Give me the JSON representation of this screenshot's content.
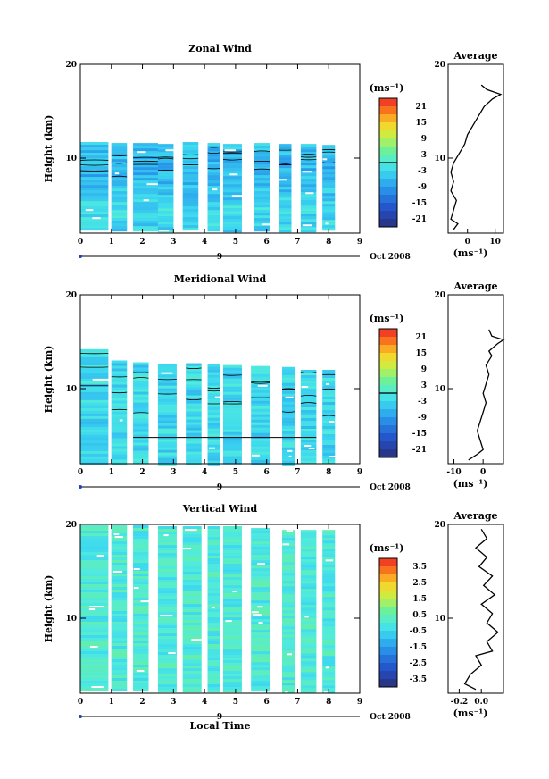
{
  "chart_data": [
    {
      "type": "heatmap",
      "title": "Zonal Wind",
      "ylabel": "Height (km)",
      "xlabel": "",
      "date_label": "Oct 2008",
      "mid_marker": "9",
      "xlim": [
        0,
        9
      ],
      "ylim": [
        2,
        20
      ],
      "xticks": [
        "0",
        "1",
        "2",
        "3",
        "4",
        "5",
        "6",
        "7",
        "8",
        "9"
      ],
      "yticks": [
        {
          "v": 10,
          "label": "10"
        },
        {
          "v": 20,
          "label": "20"
        }
      ],
      "colorbar": {
        "unit": "(ms⁻¹)",
        "range": [
          -24,
          24
        ],
        "ticks": [
          "21",
          "15",
          "9",
          "3",
          "-3",
          "-9",
          "-15",
          "-21"
        ],
        "mark": 0
      },
      "columns": [
        [
          0.0,
          0.9
        ],
        [
          1.0,
          1.5
        ],
        [
          1.7,
          2.5
        ],
        [
          2.5,
          3.0
        ],
        [
          3.3,
          3.8
        ],
        [
          4.1,
          4.5
        ],
        [
          4.6,
          5.2
        ],
        [
          5.6,
          6.1
        ],
        [
          6.4,
          6.8
        ],
        [
          7.1,
          7.6
        ],
        [
          7.8,
          8.2
        ]
      ],
      "data_top": [
        11.7,
        11.6,
        11.6,
        11.5,
        11.7,
        11.6,
        11.5,
        11.6,
        11.5,
        11.5,
        11.4
      ],
      "data_bottom": 2.3,
      "average": {
        "title": "Average",
        "xlim": [
          -7,
          13
        ],
        "xticks": [
          "0",
          "10"
        ],
        "unit": "(ms⁻¹)",
        "profile": [
          [
            -5,
            2.4
          ],
          [
            -3.5,
            3
          ],
          [
            -6,
            3.5
          ],
          [
            -5,
            4.5
          ],
          [
            -4,
            5.5
          ],
          [
            -6,
            6.5
          ],
          [
            -5,
            7.5
          ],
          [
            -6,
            8.5
          ],
          [
            -5,
            9.5
          ],
          [
            -3,
            10.5
          ],
          [
            -1,
            11.5
          ],
          [
            0,
            12.5
          ],
          [
            2,
            13.5
          ],
          [
            4,
            14.5
          ],
          [
            6,
            15.5
          ],
          [
            9,
            16.3
          ],
          [
            12,
            16.8
          ],
          [
            7,
            17.3
          ],
          [
            5,
            17.8
          ]
        ]
      }
    },
    {
      "type": "heatmap",
      "title": "Meridional Wind",
      "ylabel": "Height (km)",
      "xlabel": "",
      "date_label": "Oct 2008",
      "mid_marker": "9",
      "xlim": [
        0,
        9
      ],
      "ylim": [
        2,
        20
      ],
      "xticks": [
        "0",
        "1",
        "2",
        "3",
        "4",
        "5",
        "6",
        "7",
        "8",
        "9"
      ],
      "yticks": [
        {
          "v": 10,
          "label": "10"
        },
        {
          "v": 20,
          "label": "20"
        }
      ],
      "colorbar": {
        "unit": "(ms⁻¹)",
        "range": [
          -24,
          24
        ],
        "ticks": [
          "21",
          "15",
          "9",
          "3",
          "-3",
          "-9",
          "-15",
          "-21"
        ],
        "mark": 0
      },
      "columns": [
        [
          0.0,
          0.9
        ],
        [
          1.0,
          1.5
        ],
        [
          1.7,
          2.2
        ],
        [
          2.5,
          3.1
        ],
        [
          3.4,
          3.9
        ],
        [
          4.1,
          4.5
        ],
        [
          4.6,
          5.2
        ],
        [
          5.5,
          6.1
        ],
        [
          6.5,
          6.9
        ],
        [
          7.1,
          7.6
        ],
        [
          7.8,
          8.2
        ]
      ],
      "data_top": [
        14.2,
        13.0,
        12.8,
        12.6,
        12.7,
        12.6,
        12.5,
        12.4,
        12.3,
        12.0,
        12.0
      ],
      "data_bottom": 2.0,
      "average": {
        "title": "Average",
        "xlim": [
          -12,
          7
        ],
        "xticks": [
          "-10",
          "0"
        ],
        "unit": "(ms⁻¹)",
        "profile": [
          [
            -5,
            2.4
          ],
          [
            -2,
            3
          ],
          [
            0,
            3.5
          ],
          [
            -1,
            4.5
          ],
          [
            -2,
            5.5
          ],
          [
            -1,
            6.5
          ],
          [
            0,
            7.5
          ],
          [
            1,
            8.5
          ],
          [
            0,
            9.5
          ],
          [
            1,
            10.5
          ],
          [
            2,
            11.5
          ],
          [
            1,
            12.5
          ],
          [
            3,
            13.5
          ],
          [
            2,
            14
          ],
          [
            5,
            14.8
          ],
          [
            7,
            15.2
          ],
          [
            3,
            15.6
          ],
          [
            2,
            16.3
          ]
        ]
      }
    },
    {
      "type": "heatmap",
      "title": "Vertical Wind",
      "ylabel": "Height (km)",
      "xlabel": "Local Time",
      "date_label": "Oct 2008",
      "mid_marker": "9",
      "xlim": [
        0,
        9
      ],
      "ylim": [
        2,
        20
      ],
      "xticks": [
        "0",
        "1",
        "2",
        "3",
        "4",
        "5",
        "6",
        "7",
        "8",
        "9"
      ],
      "yticks": [
        {
          "v": 10,
          "label": "10"
        },
        {
          "v": 20,
          "label": "20"
        }
      ],
      "colorbar": {
        "unit": "(ms⁻¹)",
        "range": [
          -4,
          4
        ],
        "ticks": [
          "3.5",
          "2.5",
          "1.5",
          "0.5",
          "-0.5",
          "-1.5",
          "-2.5",
          "-3.5"
        ],
        "mark": null
      },
      "columns": [
        [
          0.0,
          0.9
        ],
        [
          1.0,
          1.5
        ],
        [
          1.7,
          2.2
        ],
        [
          2.5,
          3.1
        ],
        [
          3.3,
          3.9
        ],
        [
          4.1,
          4.5
        ],
        [
          4.6,
          5.2
        ],
        [
          5.5,
          6.1
        ],
        [
          6.5,
          6.9
        ],
        [
          7.1,
          7.6
        ],
        [
          7.8,
          8.2
        ]
      ],
      "data_top": [
        19.9,
        19.9,
        19.9,
        19.8,
        19.8,
        19.8,
        19.8,
        19.6,
        19.4,
        19.4,
        19.4
      ],
      "data_bottom": 2.2,
      "average": {
        "title": "Average",
        "xlim": [
          -0.3,
          0.2
        ],
        "xticks": [
          "-0.2",
          "0.0"
        ],
        "unit": "(ms⁻¹)",
        "profile": [
          [
            -0.05,
            2.4
          ],
          [
            -0.15,
            3
          ],
          [
            -0.1,
            4
          ],
          [
            0.0,
            5
          ],
          [
            -0.05,
            6
          ],
          [
            0.1,
            6.5
          ],
          [
            0.05,
            7.5
          ],
          [
            0.15,
            8.5
          ],
          [
            0.05,
            9.5
          ],
          [
            0.1,
            10.5
          ],
          [
            0.0,
            11.5
          ],
          [
            0.12,
            12.5
          ],
          [
            0.02,
            13.5
          ],
          [
            0.1,
            14.5
          ],
          [
            -0.02,
            15.5
          ],
          [
            0.05,
            16.5
          ],
          [
            -0.05,
            17.5
          ],
          [
            0.05,
            18.5
          ],
          [
            0.0,
            19.5
          ]
        ]
      }
    }
  ]
}
